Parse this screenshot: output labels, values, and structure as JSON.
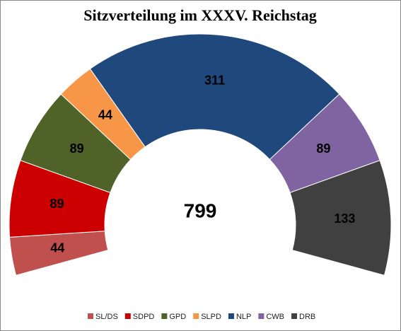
{
  "chart_data": {
    "type": "donut",
    "title": "Sitzverteilung im XXXV. Reichstag",
    "total": 799,
    "categories": [
      "SL/DS",
      "SDPD",
      "GPD",
      "SLPD",
      "NLP",
      "CWB",
      "DRB"
    ],
    "values": [
      44,
      89,
      89,
      44,
      311,
      89,
      133
    ],
    "colors": [
      "#c0504d",
      "#cc0000",
      "#4f6228",
      "#f79646",
      "#1f497d",
      "#8064a2",
      "#404040"
    ],
    "legend": "bottom"
  }
}
